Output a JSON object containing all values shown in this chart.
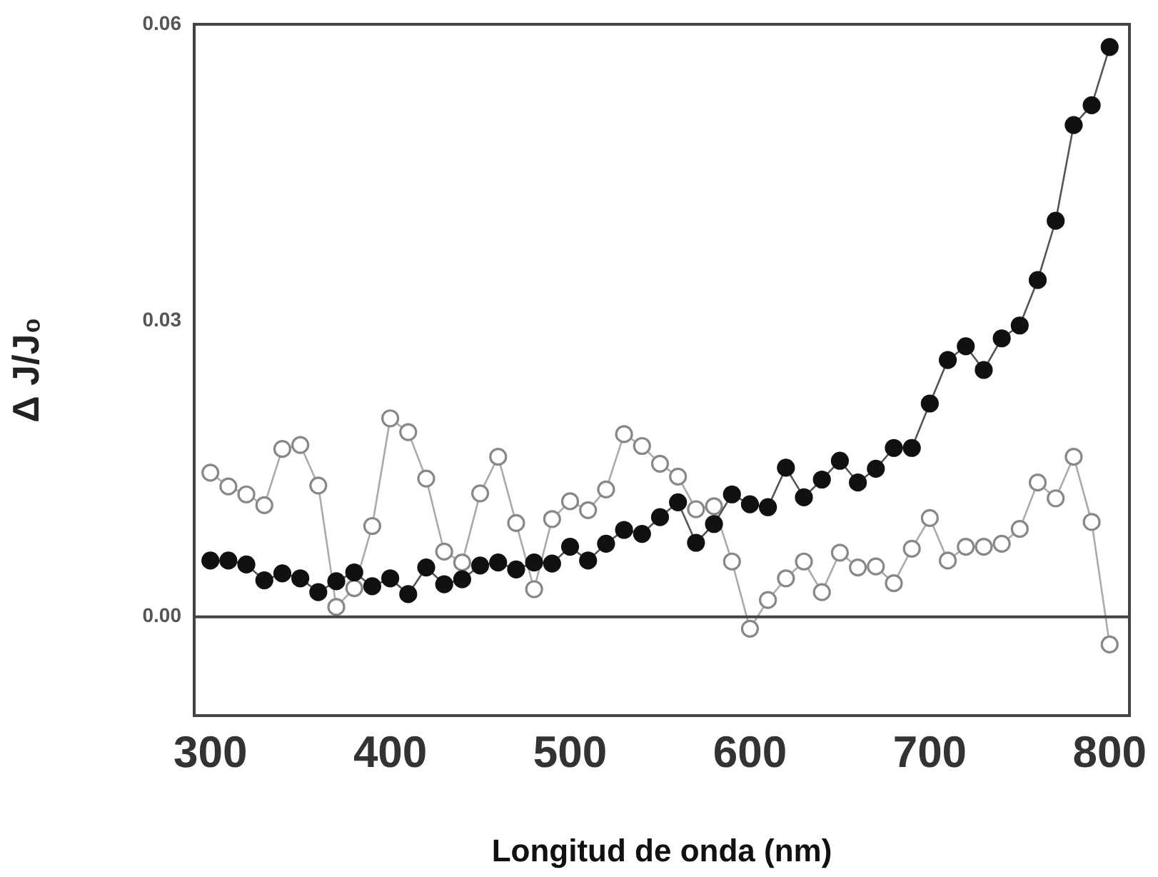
{
  "chart_data": {
    "type": "line",
    "xlabel": "Longitud de onda (nm)",
    "ylabel": "Δ J/J₀",
    "x": [
      300,
      310,
      320,
      330,
      340,
      350,
      360,
      370,
      380,
      390,
      400,
      410,
      420,
      430,
      440,
      450,
      460,
      470,
      480,
      490,
      500,
      510,
      520,
      530,
      540,
      550,
      560,
      570,
      580,
      590,
      600,
      610,
      620,
      630,
      640,
      650,
      660,
      670,
      680,
      690,
      700,
      710,
      720,
      730,
      740,
      750,
      760,
      770,
      780,
      790,
      800
    ],
    "series": [
      {
        "color": "#111111",
        "values": [
          0.0057,
          0.0057,
          0.0053,
          0.0037,
          0.0044,
          0.0039,
          0.0025,
          0.0036,
          0.0045,
          0.0031,
          0.0039,
          0.0023,
          0.005,
          0.0033,
          0.0038,
          0.0052,
          0.0055,
          0.0048,
          0.0055,
          0.0054,
          0.0071,
          0.0057,
          0.0074,
          0.0088,
          0.0084,
          0.0101,
          0.0116,
          0.0075,
          0.0094,
          0.0124,
          0.0114,
          0.0111,
          0.0151,
          0.0121,
          0.0139,
          0.0158,
          0.0136,
          0.015,
          0.0171,
          0.0171,
          0.0216,
          0.026,
          0.0274,
          0.025,
          0.0282,
          0.0295,
          0.0341,
          0.0401,
          0.0498,
          0.0518,
          0.0577
        ]
      },
      {
        "color": "#888888",
        "values": [
          0.0146,
          0.0132,
          0.0124,
          0.0113,
          0.017,
          0.0174,
          0.0133,
          0.001,
          0.0029,
          0.0092,
          0.0201,
          0.0187,
          0.014,
          0.0066,
          0.0055,
          0.0125,
          0.0162,
          0.0095,
          0.0028,
          0.0099,
          0.0117,
          0.0108,
          0.0129,
          0.0185,
          0.0173,
          0.0155,
          0.0142,
          0.0109,
          0.0112,
          0.0056,
          -0.0012,
          0.0017,
          0.0039,
          0.0056,
          0.0025,
          0.0065,
          0.005,
          0.0051,
          0.0034,
          0.0069,
          0.01,
          0.0057,
          0.0071,
          0.0071,
          0.0074,
          0.0089,
          0.0136,
          0.012,
          0.0162,
          0.0096,
          -0.0028
        ]
      }
    ],
    "xlim": [
      291,
      811
    ],
    "ylim": [
      -0.01,
      0.06
    ],
    "xticks": [
      300,
      400,
      500,
      600,
      700,
      800
    ],
    "yticks": [
      {
        "value": 0,
        "label": "0.00"
      },
      {
        "value": 0.03,
        "label": "0.03"
      },
      {
        "value": 0.06,
        "label": "0.06"
      }
    ],
    "ref_lines": [
      {
        "axis": "y",
        "value": 0,
        "color": "#444444"
      }
    ],
    "grid": false,
    "legend": false,
    "marker": "circle",
    "line_style": "solid"
  }
}
